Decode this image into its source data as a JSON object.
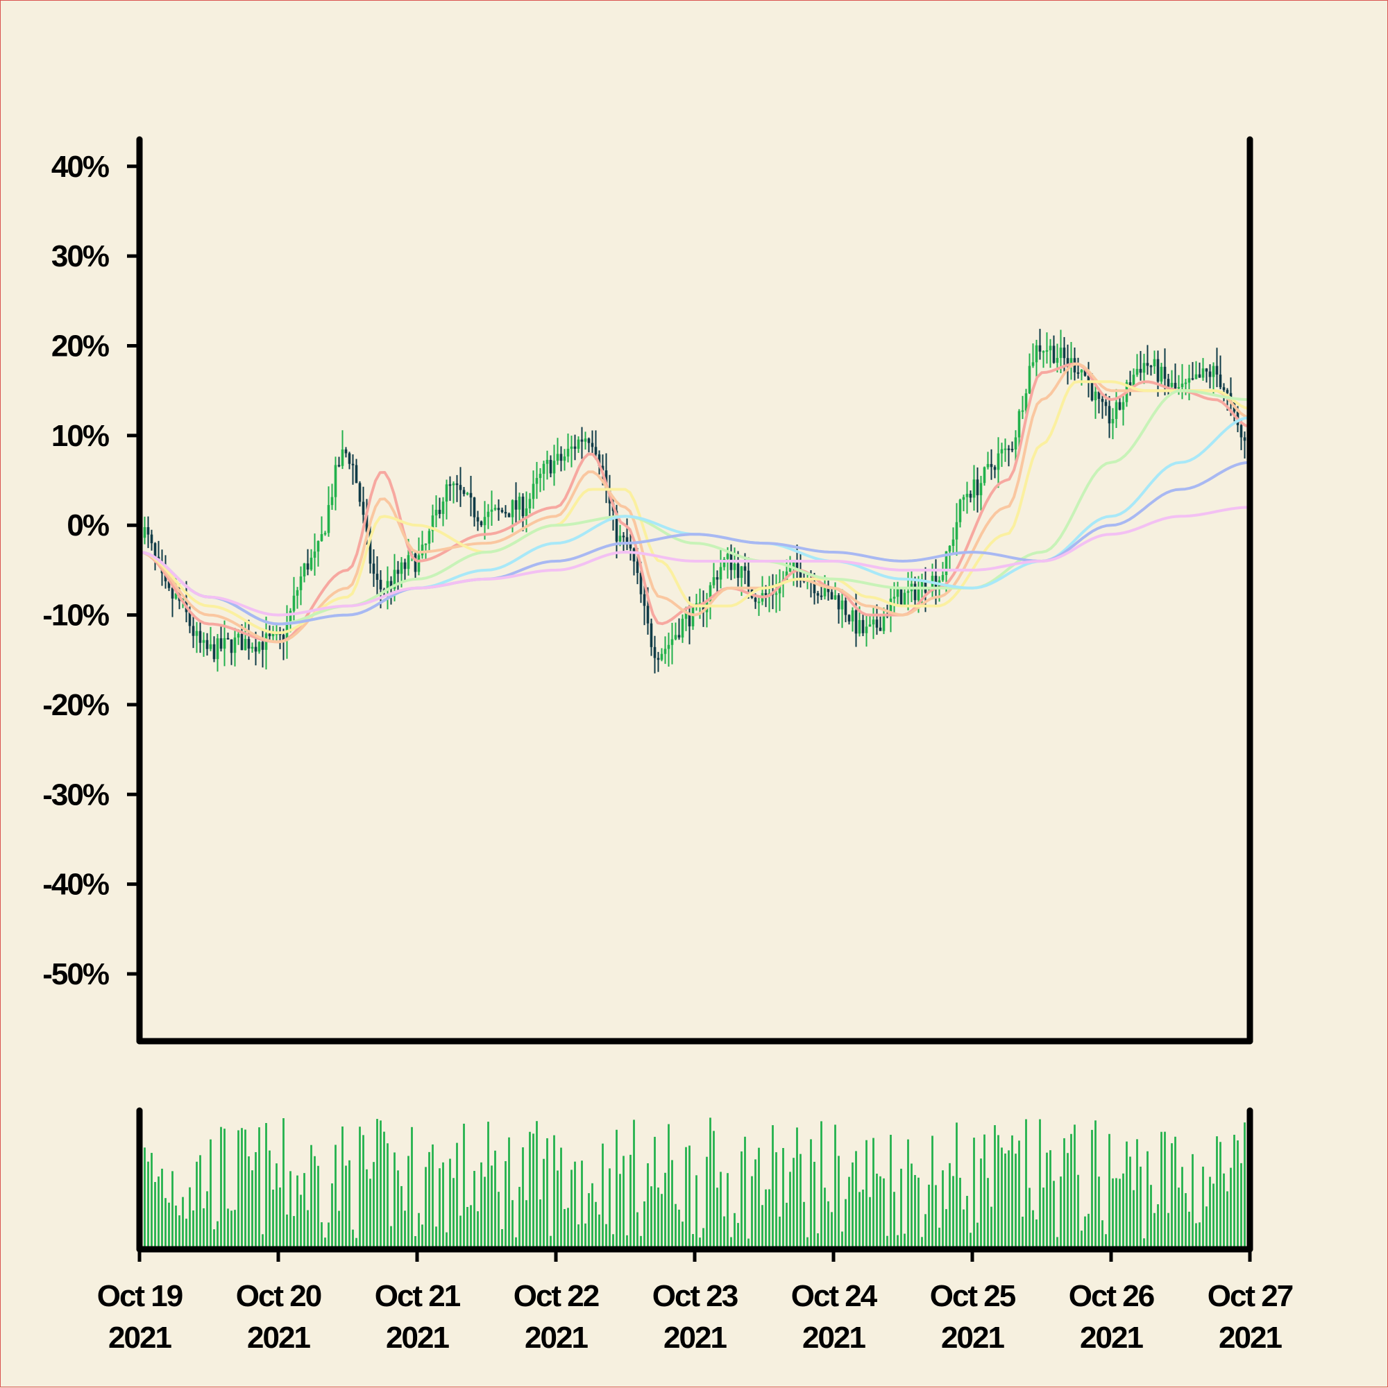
{
  "chart_data": {
    "type": "candlestick",
    "y_axis": {
      "format": "percent",
      "ticks": [
        40,
        30,
        20,
        10,
        0,
        -10,
        -20,
        -30,
        -40,
        -50
      ],
      "tick_labels": [
        "40%",
        "30%",
        "20%",
        "10%",
        "0%",
        "-10%",
        "-20%",
        "-30%",
        "-40%",
        "-50%"
      ],
      "ylim": [
        -57.5,
        43
      ]
    },
    "x_axis": {
      "xlim": [
        "2021-10-19",
        "2021-10-27"
      ],
      "ticks": [
        "2021-10-19",
        "2021-10-20",
        "2021-10-21",
        "2021-10-22",
        "2021-10-23",
        "2021-10-24",
        "2021-10-25",
        "2021-10-26",
        "2021-10-27"
      ],
      "tick_labels": [
        [
          "Oct 19",
          "2021"
        ],
        [
          "Oct 20",
          "2021"
        ],
        [
          "Oct 21",
          "2021"
        ],
        [
          "Oct 22",
          "2021"
        ],
        [
          "Oct 23",
          "2021"
        ],
        [
          "Oct 24",
          "2021"
        ],
        [
          "Oct 25",
          "2021"
        ],
        [
          "Oct 26",
          "2021"
        ],
        [
          "Oct 27",
          "2021"
        ]
      ]
    },
    "grid": false,
    "colors": {
      "background": "#f6f0df",
      "up_candle": "#22b14c",
      "down_candle": "#0f3b47",
      "volume": "#22b14c"
    },
    "price_close_percent": {
      "x": [
        "2021-10-19T00:00",
        "2021-10-19T06:00",
        "2021-10-19T12:00",
        "2021-10-19T18:00",
        "2021-10-20T00:00",
        "2021-10-20T06:00",
        "2021-10-20T12:00",
        "2021-10-20T18:00",
        "2021-10-21T00:00",
        "2021-10-21T06:00",
        "2021-10-21T12:00",
        "2021-10-21T18:00",
        "2021-10-22T00:00",
        "2021-10-22T06:00",
        "2021-10-22T12:00",
        "2021-10-22T18:00",
        "2021-10-23T00:00",
        "2021-10-23T06:00",
        "2021-10-23T12:00",
        "2021-10-23T18:00",
        "2021-10-24T00:00",
        "2021-10-24T06:00",
        "2021-10-24T12:00",
        "2021-10-24T18:00",
        "2021-10-25T00:00",
        "2021-10-25T06:00",
        "2021-10-25T12:00",
        "2021-10-25T18:00",
        "2021-10-26T00:00",
        "2021-10-26T06:00",
        "2021-10-26T12:00",
        "2021-10-26T18:00",
        "2021-10-27T00:00"
      ],
      "values": [
        0,
        -8,
        -14,
        -13,
        -13,
        -4,
        8,
        -7,
        -4,
        4,
        1,
        2,
        7,
        10,
        -2,
        -14,
        -10,
        -4,
        -8,
        -5,
        -8,
        -12,
        -8,
        -6,
        4,
        8,
        20,
        18,
        12,
        18,
        15,
        17,
        9
      ]
    },
    "series": [
      {
        "color": "#f7a8a0",
        "x": [
          "2021-10-19T00:00",
          "2021-10-19T12:00",
          "2021-10-20T00:00",
          "2021-10-20T12:00",
          "2021-10-20T18:00",
          "2021-10-21T00:00",
          "2021-10-21T12:00",
          "2021-10-22T00:00",
          "2021-10-22T06:00",
          "2021-10-22T12:00",
          "2021-10-22T18:00",
          "2021-10-23T00:00",
          "2021-10-23T06:00",
          "2021-10-23T12:00",
          "2021-10-23T18:00",
          "2021-10-24T00:00",
          "2021-10-24T06:00",
          "2021-10-24T12:00",
          "2021-10-24T18:00",
          "2021-10-25T06:00",
          "2021-10-25T12:00",
          "2021-10-25T18:00",
          "2021-10-26T00:00",
          "2021-10-26T06:00",
          "2021-10-26T12:00",
          "2021-10-26T18:00",
          "2021-10-27T00:00"
        ],
        "values": [
          -3,
          -11,
          -13,
          -5,
          6,
          -4,
          -1,
          2,
          8,
          0,
          -11,
          -9,
          -7,
          -8,
          -5,
          -7,
          -10,
          -10,
          -7,
          5,
          17,
          18,
          14,
          16,
          15,
          14,
          11
        ]
      },
      {
        "color": "#fac7a0",
        "x": [
          "2021-10-19T00:00",
          "2021-10-19T12:00",
          "2021-10-20T00:00",
          "2021-10-20T12:00",
          "2021-10-20T18:00",
          "2021-10-21T00:00",
          "2021-10-21T12:00",
          "2021-10-22T00:00",
          "2021-10-22T06:00",
          "2021-10-22T12:00",
          "2021-10-22T18:00",
          "2021-10-23T00:00",
          "2021-10-23T06:00",
          "2021-10-23T12:00",
          "2021-10-23T18:00",
          "2021-10-24T00:00",
          "2021-10-24T06:00",
          "2021-10-24T12:00",
          "2021-10-24T18:00",
          "2021-10-25T06:00",
          "2021-10-25T12:00",
          "2021-10-25T18:00",
          "2021-10-26T00:00",
          "2021-10-26T06:00",
          "2021-10-26T12:00",
          "2021-10-26T18:00",
          "2021-10-27T00:00"
        ],
        "values": [
          -3,
          -10,
          -13,
          -7,
          3,
          -3,
          -2,
          1,
          6,
          2,
          -8,
          -10,
          -7,
          -7,
          -6,
          -7,
          -9,
          -10,
          -8,
          2,
          14,
          18,
          15,
          15,
          15,
          15,
          12
        ]
      },
      {
        "color": "#fbf0a0",
        "x": [
          "2021-10-19T00:00",
          "2021-10-19T12:00",
          "2021-10-20T00:00",
          "2021-10-20T12:00",
          "2021-10-20T18:00",
          "2021-10-21T00:00",
          "2021-10-21T12:00",
          "2021-10-22T00:00",
          "2021-10-22T06:00",
          "2021-10-22T12:00",
          "2021-10-22T18:00",
          "2021-10-23T00:00",
          "2021-10-23T06:00",
          "2021-10-23T12:00",
          "2021-10-23T18:00",
          "2021-10-24T00:00",
          "2021-10-24T06:00",
          "2021-10-24T12:00",
          "2021-10-24T18:00",
          "2021-10-25T06:00",
          "2021-10-25T12:00",
          "2021-10-25T18:00",
          "2021-10-26T00:00",
          "2021-10-26T06:00",
          "2021-10-26T12:00",
          "2021-10-26T18:00",
          "2021-10-27T00:00"
        ],
        "values": [
          -3,
          -9,
          -12,
          -8,
          1,
          0,
          -3,
          0,
          4,
          4,
          -4,
          -9,
          -9,
          -7,
          -6,
          -6,
          -8,
          -9,
          -9,
          -1,
          9,
          16,
          16,
          15,
          15,
          15,
          13
        ]
      },
      {
        "color": "#c8f3b8",
        "x": [
          "2021-10-19T00:00",
          "2021-10-19T12:00",
          "2021-10-20T00:00",
          "2021-10-20T12:00",
          "2021-10-21T00:00",
          "2021-10-21T12:00",
          "2021-10-22T00:00",
          "2021-10-22T12:00",
          "2021-10-23T00:00",
          "2021-10-23T12:00",
          "2021-10-24T00:00",
          "2021-10-24T12:00",
          "2021-10-25T00:00",
          "2021-10-25T12:00",
          "2021-10-26T00:00",
          "2021-10-26T12:00",
          "2021-10-27T00:00"
        ],
        "values": [
          -3,
          -8,
          -11,
          -9,
          -6,
          -3,
          0,
          1,
          -2,
          -4,
          -6,
          -7,
          -7,
          -3,
          7,
          15,
          14
        ]
      },
      {
        "color": "#a8e8f8",
        "x": [
          "2021-10-19T00:00",
          "2021-10-19T12:00",
          "2021-10-20T00:00",
          "2021-10-20T12:00",
          "2021-10-21T00:00",
          "2021-10-21T12:00",
          "2021-10-22T00:00",
          "2021-10-22T12:00",
          "2021-10-23T00:00",
          "2021-10-23T12:00",
          "2021-10-24T00:00",
          "2021-10-24T12:00",
          "2021-10-25T00:00",
          "2021-10-25T12:00",
          "2021-10-26T00:00",
          "2021-10-26T12:00",
          "2021-10-27T00:00"
        ],
        "values": [
          -3,
          -8,
          -11,
          -10,
          -7,
          -5,
          -2,
          1,
          -1,
          -2,
          -4,
          -6,
          -7,
          -4,
          1,
          7,
          12
        ]
      },
      {
        "color": "#a8b8f2",
        "x": [
          "2021-10-19T00:00",
          "2021-10-19T12:00",
          "2021-10-20T00:00",
          "2021-10-20T12:00",
          "2021-10-21T00:00",
          "2021-10-21T12:00",
          "2021-10-22T00:00",
          "2021-10-22T12:00",
          "2021-10-23T00:00",
          "2021-10-23T12:00",
          "2021-10-24T00:00",
          "2021-10-24T12:00",
          "2021-10-25T00:00",
          "2021-10-25T12:00",
          "2021-10-26T00:00",
          "2021-10-26T12:00",
          "2021-10-27T00:00"
        ],
        "values": [
          -3,
          -8,
          -11,
          -10,
          -7,
          -6,
          -4,
          -2,
          -1,
          -2,
          -3,
          -4,
          -3,
          -4,
          0,
          4,
          7
        ]
      },
      {
        "color": "#f3c0f3",
        "x": [
          "2021-10-19T00:00",
          "2021-10-19T12:00",
          "2021-10-20T00:00",
          "2021-10-20T12:00",
          "2021-10-21T00:00",
          "2021-10-21T12:00",
          "2021-10-22T00:00",
          "2021-10-22T12:00",
          "2021-10-23T00:00",
          "2021-10-23T12:00",
          "2021-10-24T00:00",
          "2021-10-24T12:00",
          "2021-10-25T00:00",
          "2021-10-25T12:00",
          "2021-10-26T00:00",
          "2021-10-26T12:00",
          "2021-10-27T00:00"
        ],
        "values": [
          -3,
          -8,
          -10,
          -9,
          -7,
          -6,
          -5,
          -3,
          -4,
          -4,
          -4,
          -5,
          -5,
          -4,
          -1,
          1,
          2
        ]
      }
    ]
  }
}
